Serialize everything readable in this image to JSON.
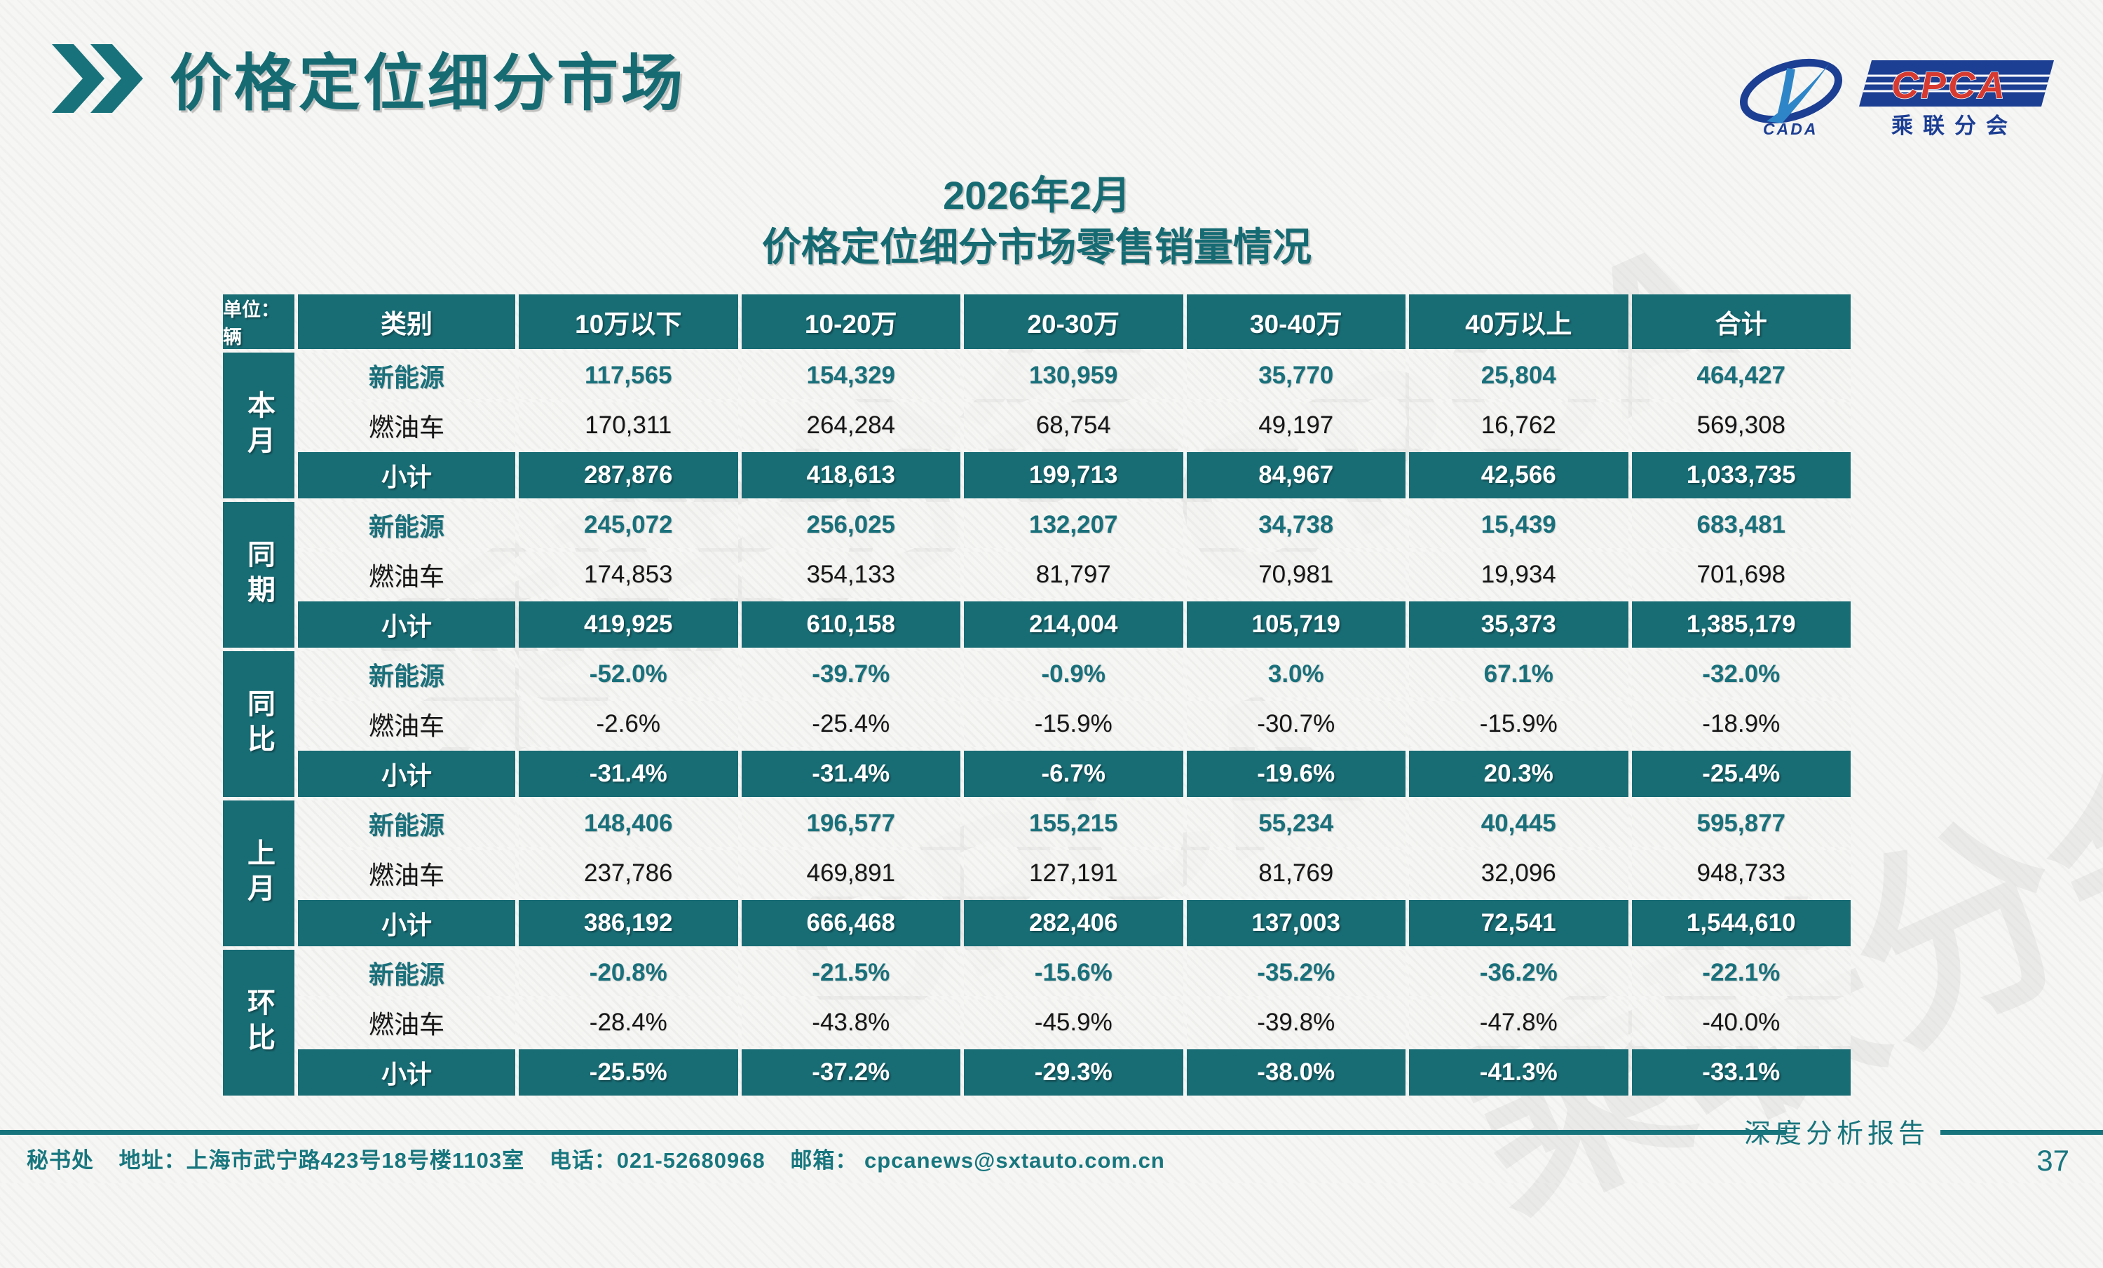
{
  "header": {
    "title": "价格定位细分市场"
  },
  "logo": {
    "cpca": "CPCA",
    "sub": "乘联分会",
    "cada": "CADA"
  },
  "subtitle": {
    "line1": "2026年2月",
    "line2": "价格定位细分市场零售销量情况"
  },
  "table": {
    "unit_label": "单位：辆",
    "columns": [
      "类别",
      "10万以下",
      "10-20万",
      "20-30万",
      "30-40万",
      "40万以上",
      "合计"
    ],
    "groups": [
      {
        "label": "本月",
        "rows": [
          {
            "category": "新能源",
            "style": "nev",
            "values": [
              "117,565",
              "154,329",
              "130,959",
              "35,770",
              "25,804",
              "464,427"
            ]
          },
          {
            "category": "燃油车",
            "style": "fuel",
            "values": [
              "170,311",
              "264,284",
              "68,754",
              "49,197",
              "16,762",
              "569,308"
            ]
          },
          {
            "category": "小计",
            "style": "subtotal",
            "values": [
              "287,876",
              "418,613",
              "199,713",
              "84,967",
              "42,566",
              "1,033,735"
            ]
          }
        ]
      },
      {
        "label": "同期",
        "rows": [
          {
            "category": "新能源",
            "style": "nev",
            "values": [
              "245,072",
              "256,025",
              "132,207",
              "34,738",
              "15,439",
              "683,481"
            ]
          },
          {
            "category": "燃油车",
            "style": "fuel",
            "values": [
              "174,853",
              "354,133",
              "81,797",
              "70,981",
              "19,934",
              "701,698"
            ]
          },
          {
            "category": "小计",
            "style": "subtotal",
            "values": [
              "419,925",
              "610,158",
              "214,004",
              "105,719",
              "35,373",
              "1,385,179"
            ]
          }
        ]
      },
      {
        "label": "同比",
        "rows": [
          {
            "category": "新能源",
            "style": "nev",
            "values": [
              "-52.0%",
              "-39.7%",
              "-0.9%",
              "3.0%",
              "67.1%",
              "-32.0%"
            ]
          },
          {
            "category": "燃油车",
            "style": "fuel",
            "values": [
              "-2.6%",
              "-25.4%",
              "-15.9%",
              "-30.7%",
              "-15.9%",
              "-18.9%"
            ]
          },
          {
            "category": "小计",
            "style": "subtotal",
            "values": [
              "-31.4%",
              "-31.4%",
              "-6.7%",
              "-19.6%",
              "20.3%",
              "-25.4%"
            ]
          }
        ]
      },
      {
        "label": "上月",
        "rows": [
          {
            "category": "新能源",
            "style": "nev",
            "values": [
              "148,406",
              "196,577",
              "155,215",
              "55,234",
              "40,445",
              "595,877"
            ]
          },
          {
            "category": "燃油车",
            "style": "fuel",
            "values": [
              "237,786",
              "469,891",
              "127,191",
              "81,769",
              "32,096",
              "948,733"
            ]
          },
          {
            "category": "小计",
            "style": "subtotal",
            "values": [
              "386,192",
              "666,468",
              "282,406",
              "137,003",
              "72,541",
              "1,544,610"
            ]
          }
        ]
      },
      {
        "label": "环比",
        "rows": [
          {
            "category": "新能源",
            "style": "nev",
            "values": [
              "-20.8%",
              "-21.5%",
              "-15.6%",
              "-35.2%",
              "-36.2%",
              "-22.1%"
            ]
          },
          {
            "category": "燃油车",
            "style": "fuel",
            "values": [
              "-28.4%",
              "-43.8%",
              "-45.9%",
              "-39.8%",
              "-47.8%",
              "-40.0%"
            ]
          },
          {
            "category": "小计",
            "style": "subtotal",
            "values": [
              "-25.5%",
              "-37.2%",
              "-29.3%",
              "-38.0%",
              "-41.3%",
              "-33.1%"
            ]
          }
        ]
      }
    ]
  },
  "footer": {
    "secretariat": "秘书处",
    "address": "地址：上海市武宁路423号18号楼1103室",
    "phone": "电话：021-52680968",
    "email_label": "邮箱：",
    "email": "cpcanews@sxtauto.com.cn",
    "report_label": "深度分析报告",
    "page_number": "37"
  },
  "colors": {
    "teal": "#186C74",
    "nev_text": "#19707B",
    "logo_blue": "#1C3E93",
    "logo_red": "#D63A30"
  },
  "watermark": {
    "text1": "乘联分会",
    "text2": "CPCA"
  }
}
